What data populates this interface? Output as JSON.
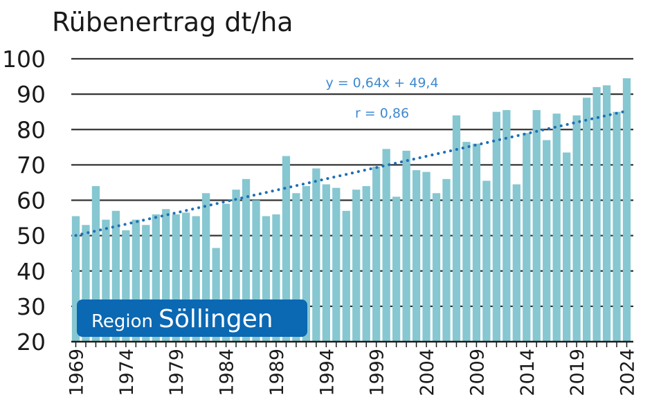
{
  "chart_data": {
    "type": "bar",
    "title": "Rübenertrag dt/ha",
    "xlabel": "",
    "ylabel": "",
    "ylim": [
      20,
      100
    ],
    "yticks": [
      20,
      30,
      40,
      50,
      60,
      70,
      80,
      90,
      100
    ],
    "grid": true,
    "categories": [
      1969,
      1970,
      1971,
      1972,
      1973,
      1974,
      1975,
      1976,
      1977,
      1978,
      1979,
      1980,
      1981,
      1982,
      1983,
      1984,
      1985,
      1986,
      1987,
      1988,
      1989,
      1990,
      1991,
      1992,
      1993,
      1994,
      1995,
      1996,
      1997,
      1998,
      1999,
      2000,
      2001,
      2002,
      2003,
      2004,
      2005,
      2006,
      2007,
      2008,
      2009,
      2010,
      2011,
      2012,
      2013,
      2014,
      2015,
      2016,
      2017,
      2018,
      2019,
      2020,
      2021,
      2022,
      2023,
      2024
    ],
    "xtick_labels": [
      "1969",
      "1974",
      "1979",
      "1984",
      "1989",
      "1994",
      "1999",
      "2004",
      "2009",
      "2014",
      "2019",
      "2024"
    ],
    "values": [
      55.5,
      53,
      64,
      54.5,
      57,
      51.5,
      54.5,
      53,
      56,
      57.5,
      56,
      56.5,
      55.5,
      62,
      46.5,
      59,
      63,
      66,
      60,
      55.5,
      56,
      72.5,
      62,
      64,
      69,
      64.5,
      63.5,
      57,
      63,
      64,
      69.5,
      74.5,
      61,
      74,
      68.5,
      68,
      62,
      66,
      84,
      76.5,
      76,
      65.5,
      85,
      85.5,
      64.5,
      79,
      85.5,
      77,
      84.5,
      73.5,
      84,
      89,
      92,
      92.5,
      85,
      94.5
    ],
    "trendline": {
      "slope": 0.64,
      "intercept": 49.4,
      "equation": "y = 0,64x + 49,4",
      "r_label": "r = 0,86"
    },
    "badge": {
      "small": "Region",
      "big": "Söllingen"
    },
    "colors": {
      "bar": "#86c7d1",
      "trend": "#1f6fb5",
      "annotation": "#3f8ad0",
      "badge_bg": "#0b68b3",
      "grid": "#333333"
    }
  }
}
